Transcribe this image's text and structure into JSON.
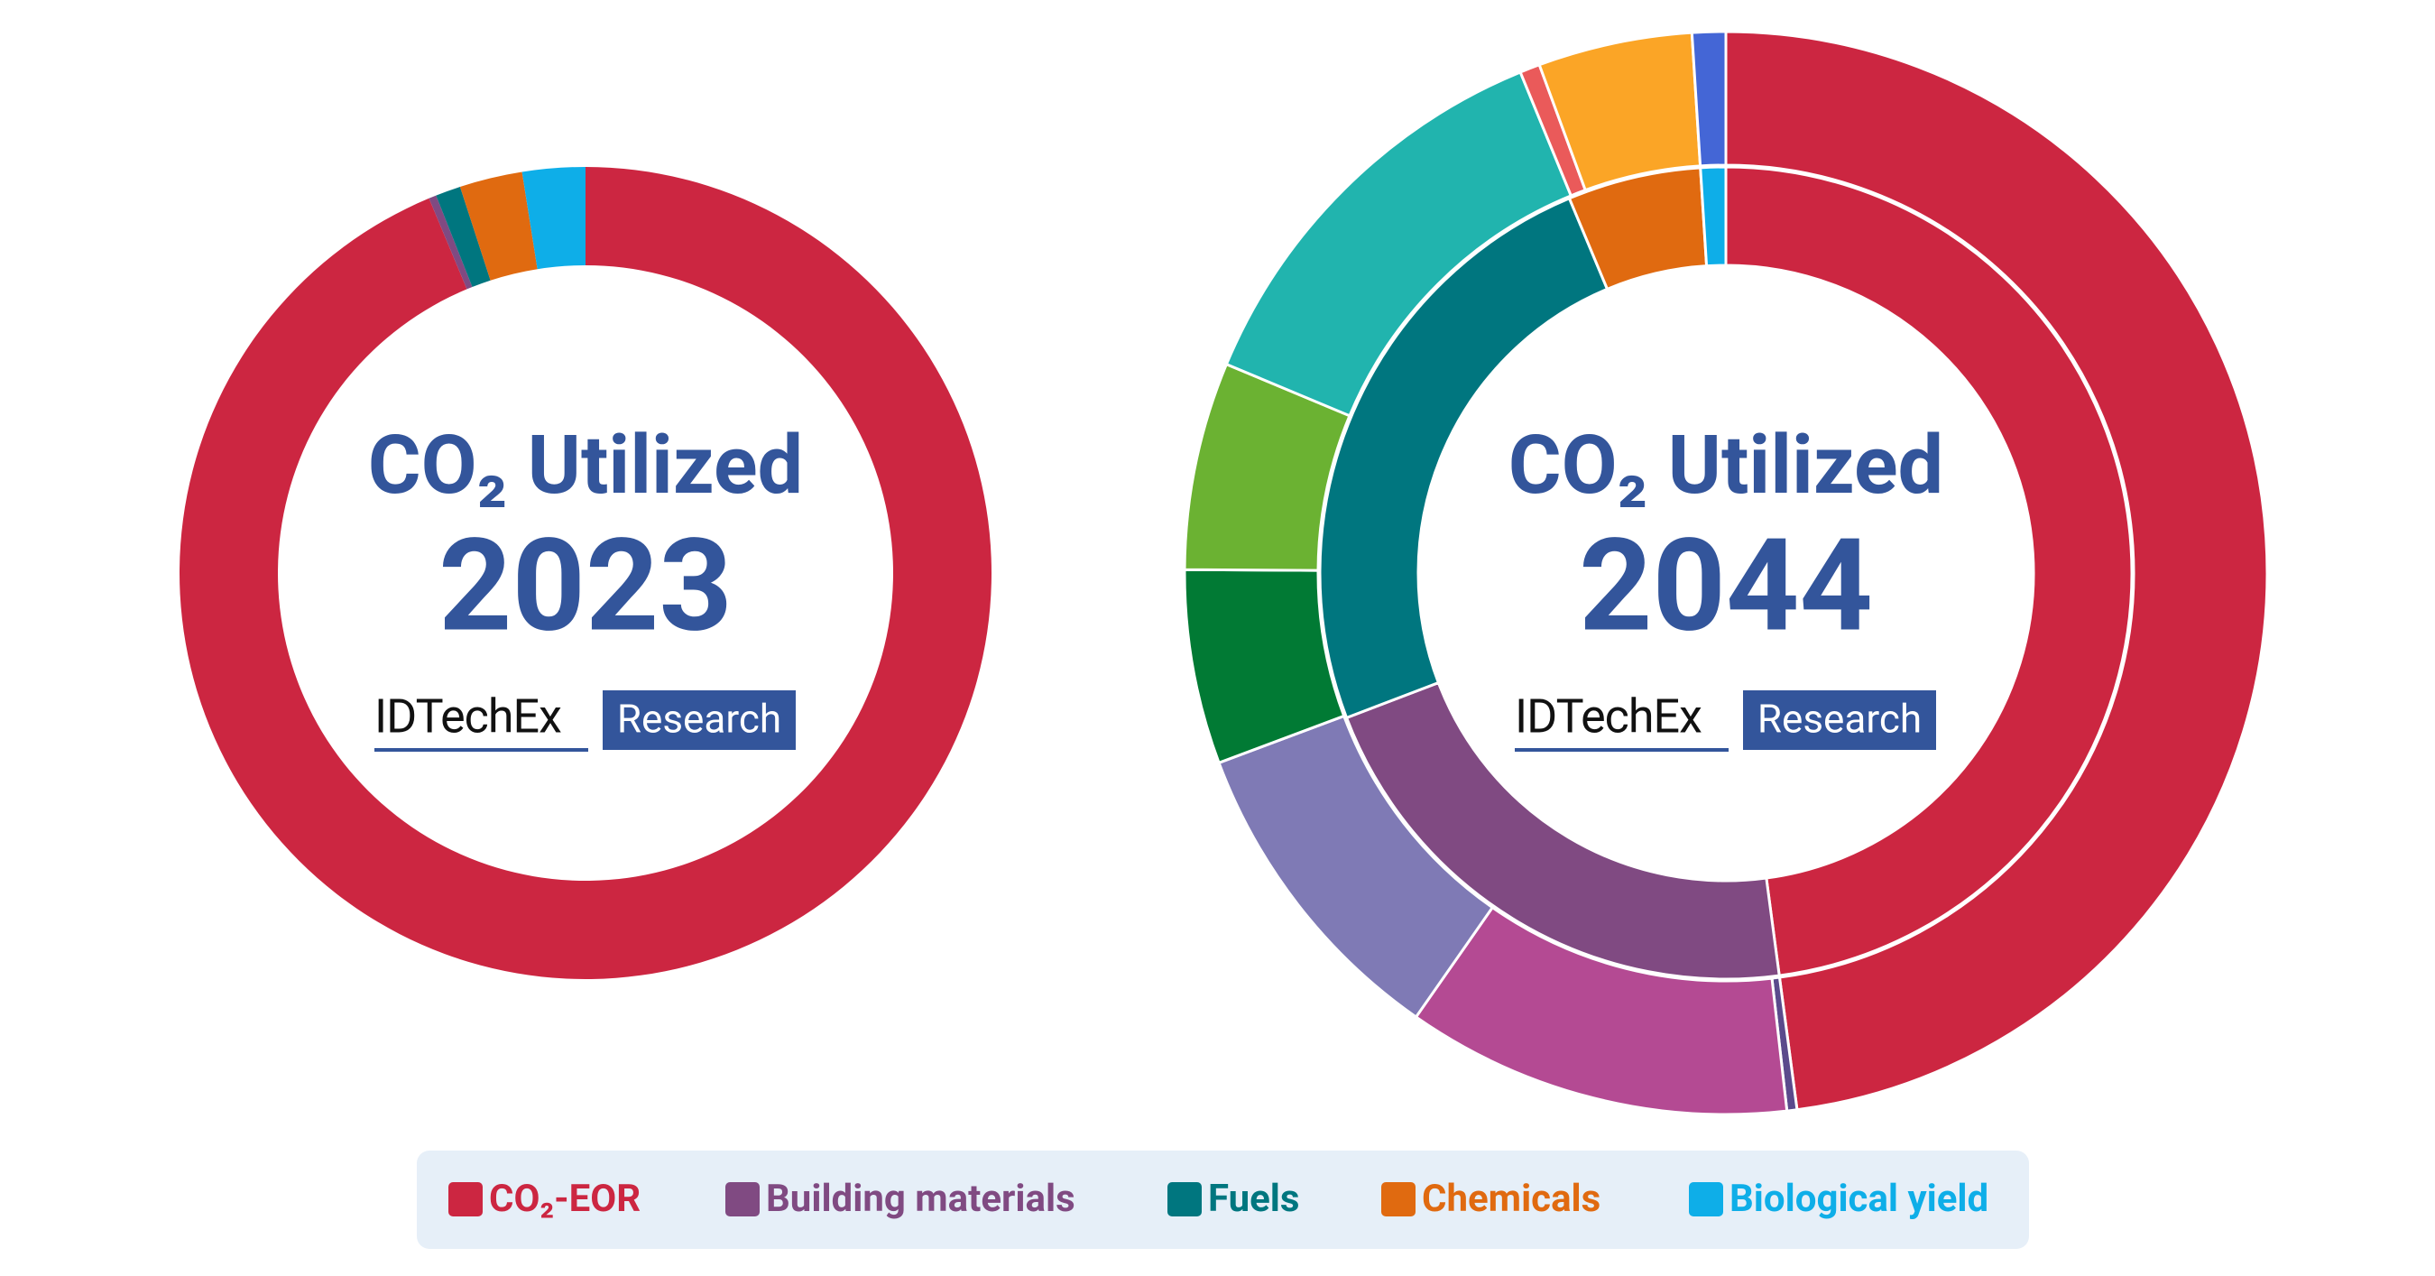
{
  "chart_data": [
    {
      "type": "donut",
      "title": "CO₂ Utilized",
      "year": "2023",
      "logo": {
        "brand": "IDTechEx",
        "tag": "Research"
      },
      "rings": [
        {
          "values": [
            93.7,
            0.3,
            1.0,
            2.5,
            2.5
          ],
          "colors": [
            "#cc2641",
            "#804a82",
            "#00767f",
            "#e06a10",
            "#0eaee8"
          ]
        }
      ]
    },
    {
      "type": "donut",
      "title": "CO₂ Utilized",
      "year": "2044",
      "logo": {
        "brand": "IDTechEx",
        "tag": "Research"
      },
      "rings": [
        {
          "values": [
            47.9,
            21.3,
            24.5,
            5.3,
            1.0
          ],
          "colors": [
            "#cc2641",
            "#804a82",
            "#00767f",
            "#e06a10",
            "#0eaee8"
          ]
        },
        {
          "values": [
            47.9,
            0.3,
            11.5,
            9.6,
            5.8,
            6.2,
            12.5,
            0.6,
            4.6,
            1.0
          ],
          "colors": [
            "#cc2641",
            "#5b4a8c",
            "#b44a93",
            "#7f7ab5",
            "#017a34",
            "#6bb232",
            "#21b4ae",
            "#ea5a5a",
            "#fba526",
            "#4466d6"
          ]
        }
      ]
    }
  ],
  "legend": [
    {
      "name": "CO₂-EOR",
      "color": "#cc2641"
    },
    {
      "name": "Building materials",
      "color": "#804a82"
    },
    {
      "name": "Fuels",
      "color": "#00767f"
    },
    {
      "name": "Chemicals",
      "color": "#e06a10"
    },
    {
      "name": "Biological yield",
      "color": "#0eaee8"
    }
  ]
}
